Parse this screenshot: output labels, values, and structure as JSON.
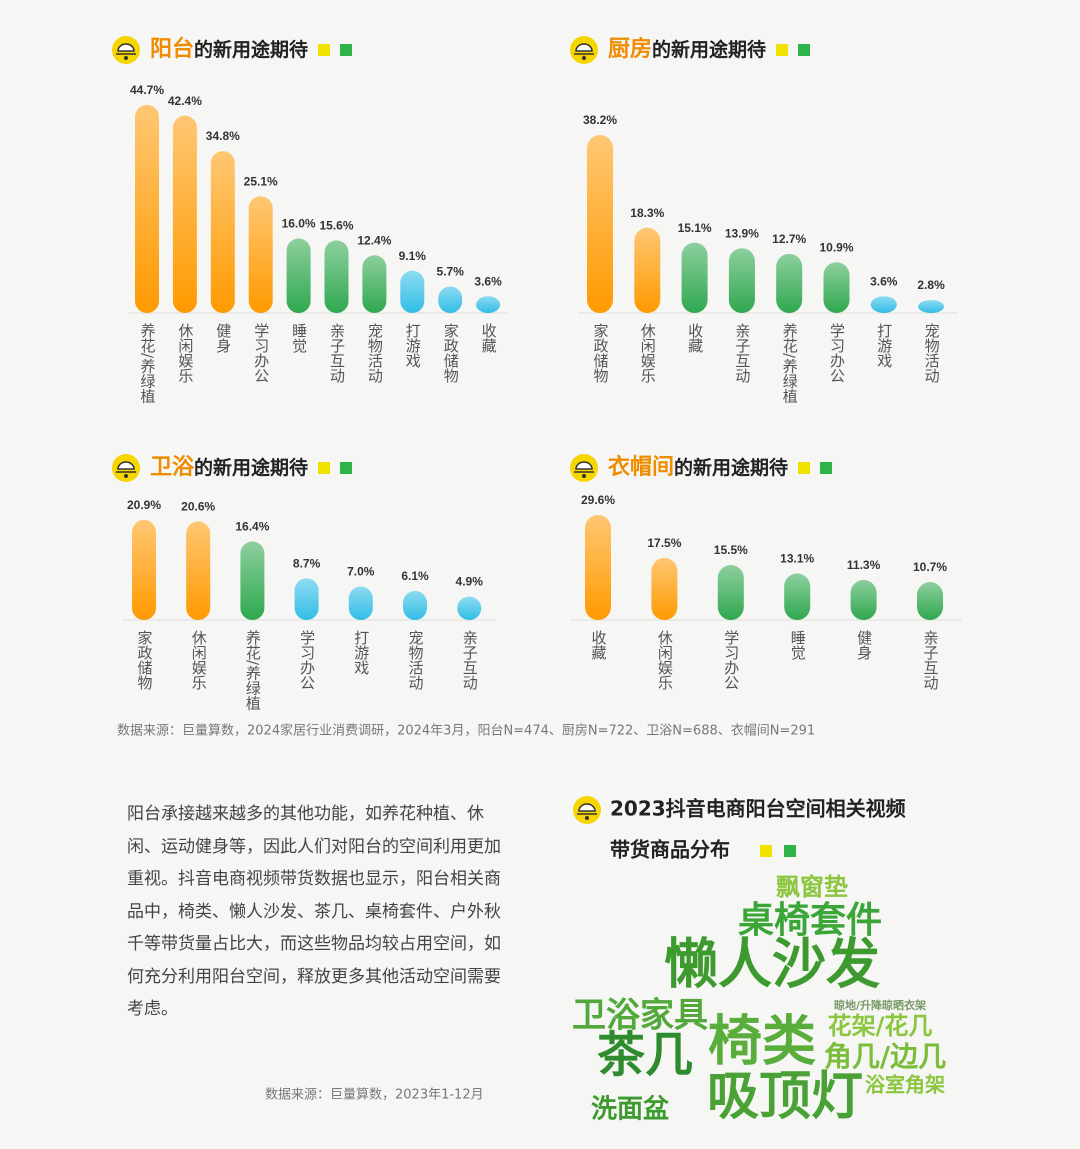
{
  "chart_data": [
    {
      "type": "bar",
      "title_highlight": "阳台",
      "title": "的新用途期待",
      "categories": [
        "养花/养绿植",
        "休闲娱乐",
        "健身",
        "学习办公",
        "睡觉",
        "亲子互动",
        "宠物活动",
        "打游戏",
        "家政储物",
        "收藏"
      ],
      "values": [
        44.7,
        42.4,
        34.8,
        25.1,
        16.0,
        15.6,
        12.4,
        9.1,
        5.7,
        3.6
      ],
      "value_labels": [
        "44.7%",
        "42.4%",
        "34.8%",
        "25.1%",
        "16.0%",
        "15.6%",
        "12.4%",
        "9.1%",
        "5.7%",
        "3.6%"
      ],
      "colors": [
        "#ff9a00",
        "#ff9a00",
        "#ff9a00",
        "#ff9a00",
        "#2fa84f",
        "#2fa84f",
        "#2fa84f",
        "#31bde6",
        "#31bde6",
        "#31bde6"
      ]
    },
    {
      "type": "bar",
      "title_highlight": "厨房",
      "title": "的新用途期待",
      "categories": [
        "家政储物",
        "休闲娱乐",
        "收藏",
        "亲子互动",
        "养花/养绿植",
        "学习办公",
        "打游戏",
        "宠物活动"
      ],
      "values": [
        38.2,
        18.3,
        15.1,
        13.9,
        12.7,
        10.9,
        3.6,
        2.8
      ],
      "value_labels": [
        "38.2%",
        "18.3%",
        "15.1%",
        "13.9%",
        "12.7%",
        "10.9%",
        "3.6%",
        "2.8%"
      ],
      "colors": [
        "#ff9a00",
        "#ff9a00",
        "#2fa84f",
        "#2fa84f",
        "#2fa84f",
        "#2fa84f",
        "#31bde6",
        "#31bde6"
      ]
    },
    {
      "type": "bar",
      "title_highlight": "卫浴",
      "title": "的新用途期待",
      "categories": [
        "家政储物",
        "休闲娱乐",
        "养花/养绿植",
        "学习办公",
        "打游戏",
        "宠物活动",
        "亲子互动"
      ],
      "values": [
        20.9,
        20.6,
        16.4,
        8.7,
        7.0,
        6.1,
        4.9
      ],
      "value_labels": [
        "20.9%",
        "20.6%",
        "16.4%",
        "8.7%",
        "7.0%",
        "6.1%",
        "4.9%"
      ],
      "colors": [
        "#ff9a00",
        "#ff9a00",
        "#2fa84f",
        "#31bde6",
        "#31bde6",
        "#31bde6",
        "#31bde6"
      ]
    },
    {
      "type": "bar",
      "title_highlight": "衣帽间",
      "title": "的新用途期待",
      "categories": [
        "收藏",
        "休闲娱乐",
        "学习办公",
        "睡觉",
        "健身",
        "亲子互动"
      ],
      "values": [
        29.6,
        17.5,
        15.5,
        13.1,
        11.3,
        10.7
      ],
      "value_labels": [
        "29.6%",
        "17.5%",
        "15.5%",
        "13.1%",
        "11.3%",
        "10.7%"
      ],
      "colors": [
        "#ff9a00",
        "#ff9a00",
        "#2fa84f",
        "#2fa84f",
        "#2fa84f",
        "#2fa84f"
      ]
    }
  ],
  "source_1": "数据来源：巨量算数，2024家居行业消费调研，2024年3月，阳台N=474、厨房N=722、卫浴N=688、衣帽间N=291",
  "paragraph": "阳台承接越来越多的其他功能，如养花种植、休闲、运动健身等，因此人们对阳台的空间利用更加重视。抖音电商视频带货数据也显示，阳台相关商品中，椅类、懒人沙发、茶几、桌椅套件、户外秋千等带货量占比大，而这些物品均较占用空间，如何充分利用阳台空间，释放更多其他活动空间需要考虑。",
  "source_2": "数据来源：巨量算数，2023年1-12月",
  "word_cloud": {
    "title_line_1": "2023抖音电商阳台空间相关视频",
    "title_line_2": "带货商品分布",
    "words": [
      "飘窗垫",
      "桌椅套件",
      "懒人沙发",
      "卫浴家具",
      "茶几",
      "椅类",
      "花架/花几",
      "角几/边几",
      "吸顶灯",
      "浴室角架",
      "洗面盆",
      "晾地/升降晾晒衣架"
    ]
  }
}
